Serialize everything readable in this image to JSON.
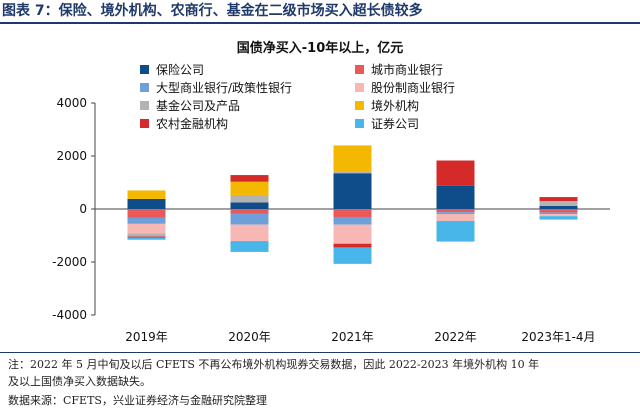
{
  "figure": {
    "title": "图表 7：保险、境外机构、农商行、基金在二级市场买入超长债较多",
    "note_line1": "注：2022 年 5 月中旬及以后 CFETS 不再公布境外机构现券交易数据，因此 2022-2023 年境外机构 10 年",
    "note_line2": "及以上国债净买入数据缺失。",
    "source": "数据来源：CFETS，兴业证券经济与金融研究院整理"
  },
  "chart_data": {
    "type": "bar",
    "stacked": true,
    "title": "国债净买入-10年以上，亿元",
    "categories": [
      "2019年",
      "2020年",
      "2021年",
      "2022年",
      "2023年1-4月"
    ],
    "ylim": [
      -4000,
      4000
    ],
    "yticks": [
      -4000,
      -2000,
      0,
      2000,
      4000
    ],
    "grid": false,
    "legend_position": "top-left",
    "series": [
      {
        "name": "保险公司",
        "color": "#0f4c8a",
        "values": [
          380,
          250,
          1350,
          880,
          120
        ]
      },
      {
        "name": "城市商业银行",
        "color": "#e85a5a",
        "values": [
          -320,
          -170,
          -330,
          -120,
          -130
        ]
      },
      {
        "name": "大型商业银行/政策性银行",
        "color": "#6e9fd8",
        "values": [
          -240,
          -420,
          -260,
          -70,
          -60
        ]
      },
      {
        "name": "股份制商业银行",
        "color": "#f7b7b4",
        "values": [
          -360,
          -620,
          -720,
          -260,
          -80
        ]
      },
      {
        "name": "基金公司及产品",
        "color": "#b3b3b3",
        "values": [
          -120,
          280,
          80,
          0,
          180
        ]
      },
      {
        "name": "境外机构",
        "color": "#f5b800",
        "values": [
          320,
          500,
          970,
          0,
          0
        ]
      },
      {
        "name": "农村金融机构",
        "color": "#d42a2a",
        "values": [
          -40,
          250,
          -140,
          950,
          150
        ]
      },
      {
        "name": "证券公司",
        "color": "#49b6ea",
        "values": [
          -80,
          -410,
          -620,
          -780,
          -130
        ]
      }
    ]
  }
}
